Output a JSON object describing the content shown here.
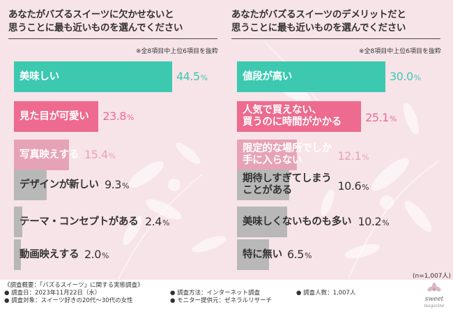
{
  "colors": {
    "background": "#f7e4e8",
    "rank1": "#3cc9b0",
    "rank2": "#ee6a8f",
    "rank3": "#e6a3b8",
    "rest": "#b8b8b8",
    "rank1_value": "#3cc9b0",
    "rank2_value": "#ee6a8f",
    "rank3_value": "#e6a3b8",
    "text": "#333333",
    "white_label": "#ffffff"
  },
  "left_panel": {
    "title_lines": [
      "あなたがバズるスイーツに欠かせないと",
      "思うことに最も近いものを選んでください"
    ],
    "note": "※全8項目中上位6項目を抜粋"
  },
  "right_panel": {
    "title_lines": [
      "あなたがバズるスイーツのデメリットだと",
      "思うことに最も近いものを選んでください"
    ],
    "note": "※全8項目中上位6項目を抜粋"
  },
  "chart_data": [
    {
      "type": "bar",
      "orientation": "horizontal",
      "title": "あなたがバズるスイーツに欠かせないと思うことに最も近いものを選んでください",
      "categories": [
        "美味しい",
        "見た目が可愛い",
        "写真映えする",
        "デザインが新しい",
        "テーマ・コンセプトがある",
        "動画映えする"
      ],
      "label_lines": [
        [
          "美味しい"
        ],
        [
          "見た目が可愛い"
        ],
        [
          "写真映えする"
        ],
        [
          "デザインが新しい"
        ],
        [
          "テーマ・コンセプトがある"
        ],
        [
          "動画映えする"
        ]
      ],
      "values": [
        44.5,
        23.8,
        15.4,
        9.3,
        2.4,
        2.0
      ],
      "unit": "%",
      "xlim": [
        0,
        44.5
      ]
    },
    {
      "type": "bar",
      "orientation": "horizontal",
      "title": "あなたがバズるスイーツのデメリットだと思うことに最も近いものを選んでください",
      "categories": [
        "値段が高い",
        "人気で買えない、買うのに時間がかかる",
        "限定的な場所でしか手に入らない",
        "期待しすぎてしまうことがある",
        "美味しくないものも多い",
        "特に無い"
      ],
      "label_lines": [
        [
          "値段が高い"
        ],
        [
          "人気で買えない、",
          "買うのに時間がかかる"
        ],
        [
          "限定的な場所でしか",
          "手に入らない"
        ],
        [
          "期待しすぎてしまう",
          "ことがある"
        ],
        [
          "美味しくないものも多い"
        ],
        [
          "特に無い"
        ]
      ],
      "values": [
        30.0,
        25.1,
        12.1,
        10.6,
        10.2,
        6.5
      ],
      "unit": "%",
      "xlim": [
        0,
        30.0
      ]
    }
  ],
  "sample_size": "(n=1,007人)",
  "footer": {
    "overview": "《調査概要：「バズるスイーツ」に関する実態調査》",
    "date": "● 調査日：2023年11月22日（水）",
    "target": "● 調査対象：スイーツ好きの20代～30代の女性",
    "method": "● 調査方法：インターネット調査",
    "provider": "● モニター提供元：ゼネラルリサーチ",
    "count": "● 調査人数：1,007人"
  },
  "logo": {
    "text": "sweet",
    "sub": "magazine"
  }
}
